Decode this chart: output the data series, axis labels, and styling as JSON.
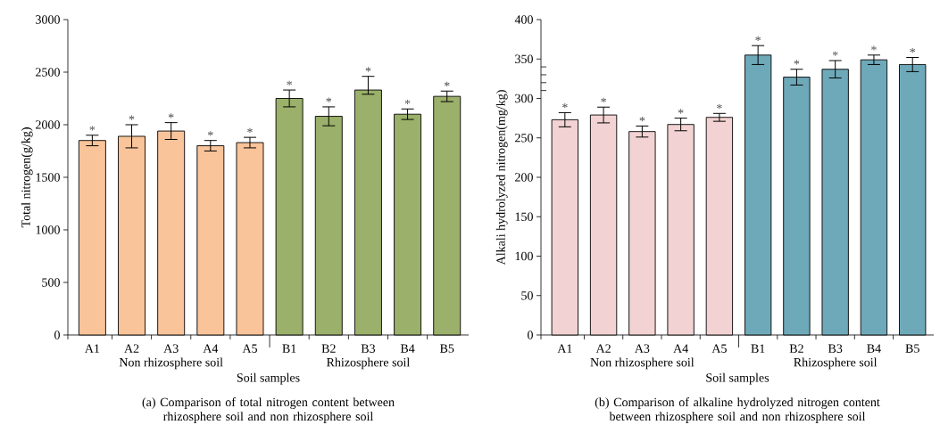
{
  "chart_data": [
    {
      "type": "bar",
      "title": "(a) Comparison of total nitrogen content between rhizosphere soil and non rhizosphere soil",
      "xlabel": "Soil samples",
      "ylabel": "Total nitrogen(g/kg)",
      "categories": [
        "A1",
        "A2",
        "A3",
        "A4",
        "A5",
        "B1",
        "B2",
        "B3",
        "B4",
        "B5"
      ],
      "values": [
        1850,
        1890,
        1940,
        1800,
        1830,
        2250,
        2080,
        2330,
        2100,
        2270
      ],
      "errors": [
        50,
        110,
        80,
        50,
        50,
        80,
        90,
        [
          2290,
          2460
        ],
        50,
        50
      ],
      "value_labels": [
        "*",
        "*",
        "*",
        "*",
        "*",
        "*",
        "*",
        "*",
        "*",
        "*"
      ],
      "colors": [
        "#f9c49a",
        "#f9c49a",
        "#f9c49a",
        "#f9c49a",
        "#f9c49a",
        "#9bb06a",
        "#9bb06a",
        "#9bb06a",
        "#9bb06a",
        "#9bb06a"
      ],
      "annotations": [
        "Non rhizosphere soil",
        "Rhizosphere soil"
      ],
      "ylim": [
        0,
        3000
      ],
      "yticks": [
        0,
        500,
        1000,
        1500,
        2000,
        2500,
        3000
      ]
    },
    {
      "type": "bar",
      "title": "(b) Comparison of alkaline hydrolyzed nitrogen content between rhizosphere soil and non rhizosphere soil",
      "xlabel": "Soil samples",
      "ylabel": "Alkali hydrolyzed nitrogen(mg/kg)",
      "categories": [
        "A1",
        "A2",
        "A3",
        "A4",
        "A5",
        "B1",
        "B2",
        "B3",
        "B4",
        "B5"
      ],
      "values": [
        273,
        279,
        258,
        267,
        276,
        355,
        327,
        337,
        349,
        343
      ],
      "errors": [
        9,
        10,
        7,
        8,
        5,
        12,
        10,
        11,
        6,
        9
      ],
      "value_labels": [
        "*",
        "*",
        "*",
        "*",
        "*",
        "*",
        "*",
        "*",
        "*",
        "*"
      ],
      "colors": [
        "#f2d2d2",
        "#f2d2d2",
        "#f2d2d2",
        "#f2d2d2",
        "#f2d2d2",
        "#6ea9ba",
        "#6ea9ba",
        "#6ea9ba",
        "#6ea9ba",
        "#6ea9ba"
      ],
      "annotations": [
        "Non rhizosphere soil",
        "Rhizosphere soil"
      ],
      "ylim": [
        0,
        400
      ],
      "yticks": [
        0,
        50,
        100,
        150,
        200,
        250,
        300,
        {
          "value": 310,
          "label": null
        },
        {
          "value": 320,
          "label": null
        },
        {
          "value": 330,
          "label": null
        },
        {
          "value": 340,
          "label": null
        },
        350,
        400
      ]
    }
  ]
}
